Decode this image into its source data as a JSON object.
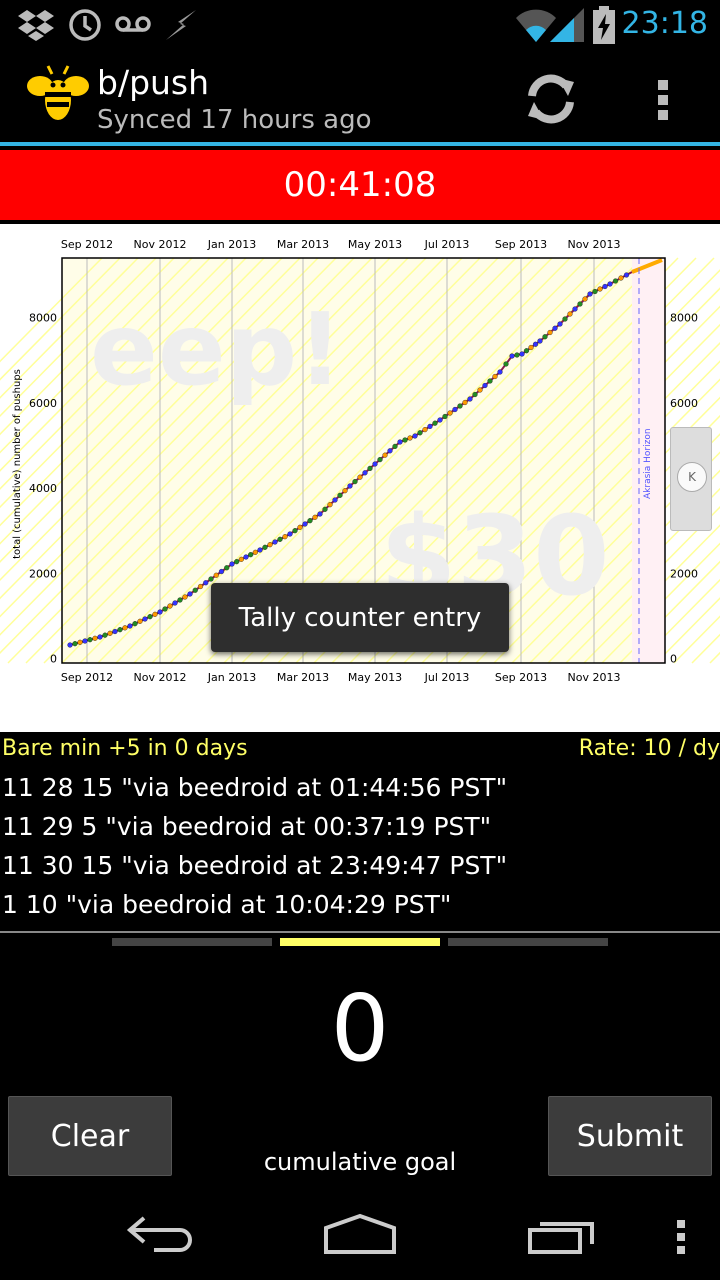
{
  "status": {
    "time": "23:18"
  },
  "app": {
    "title": "b/push",
    "subtitle": "Synced 17 hours ago"
  },
  "timer": "00:41:08",
  "graph": {
    "watermark_big": "eep!",
    "watermark_money": "$30",
    "akrasia_label": "Akrasia Horizon",
    "y_axis_label": "total (cumulative) number of pushups",
    "x_ticks": [
      "Sep 2012",
      "Nov 2012",
      "Jan 2013",
      "Mar 2013",
      "May 2013",
      "Jul 2013",
      "Sep 2013",
      "Nov 2013"
    ],
    "y_ticks": [
      "0",
      "2000",
      "4000",
      "6000",
      "8000"
    ],
    "ylim": [
      -100,
      9400
    ],
    "accent_colors": {
      "line": "#8b1a4d",
      "dot_blue": "#3333ff",
      "dot_green": "#228b22",
      "dot_orange": "#ff9900",
      "road": "#ffff99"
    }
  },
  "toast": "Tally counter entry",
  "info": {
    "bare_min": "Bare min +5 in 0 days",
    "rate": "Rate: 10 / dy"
  },
  "entries": [
    "11 28 15 \"via beedroid at 01:44:56 PST\"",
    "11 29 5 \"via beedroid at 00:37:19 PST\"",
    "11 30 15 \"via beedroid at 23:49:47 PST\"",
    "1 10 \"via beedroid at 10:04:29 PST\""
  ],
  "counter": {
    "value": "0",
    "mode": "cumulative goal"
  },
  "buttons": {
    "clear": "Clear",
    "submit": "Submit"
  }
}
